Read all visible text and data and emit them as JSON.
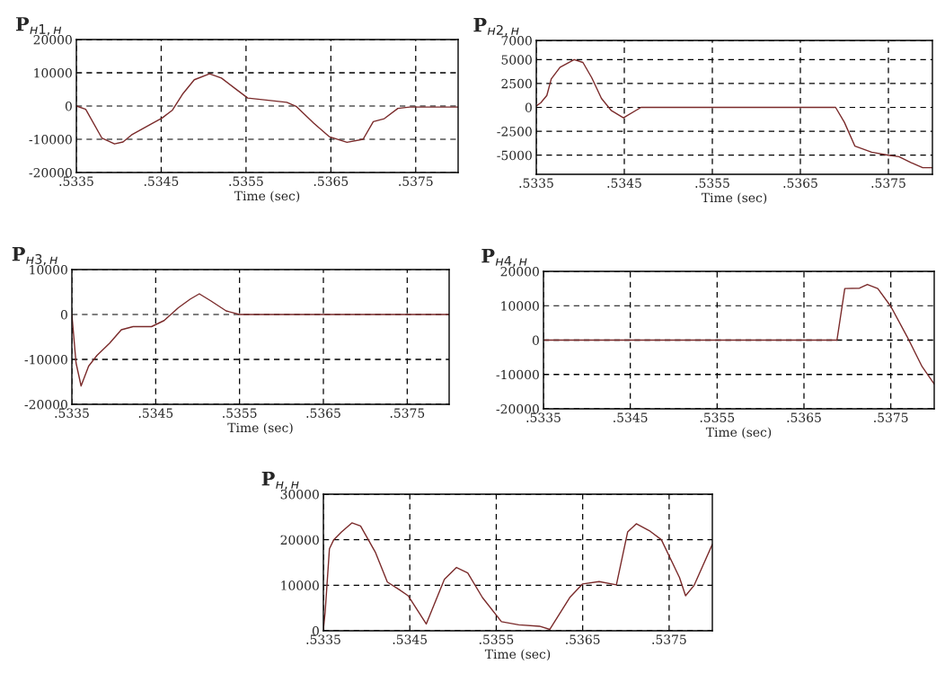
{
  "chart_data": [
    {
      "type": "line",
      "title": "P$_{н1,н}$",
      "xlabel": "Time (sec)",
      "xlim": [
        0.5335,
        0.538
      ],
      "ylim": [
        -20000,
        20000
      ],
      "grid": true,
      "xticks": [
        {
          "value": 0.5335,
          "label": ".5335"
        },
        {
          "value": 0.5345,
          "label": ".5345"
        },
        {
          "value": 0.5355,
          "label": ".5355"
        },
        {
          "value": 0.5365,
          "label": ".5365"
        },
        {
          "value": 0.5375,
          "label": ".5375"
        }
      ],
      "yticks": [
        -20000,
        -10000,
        0,
        10000,
        20000
      ],
      "series": [
        {
          "color": "#7a2a2a",
          "x": [
            0.5335,
            0.53361,
            0.5338,
            0.53395,
            0.53405,
            0.53415,
            0.53437,
            0.53451,
            0.53463,
            0.53475,
            0.53489,
            0.53507,
            0.53521,
            0.53538,
            0.53552,
            0.53574,
            0.53598,
            0.53609,
            0.5363,
            0.53648,
            0.53669,
            0.53688,
            0.537,
            0.53713,
            0.53729,
            0.53743,
            0.538
          ],
          "values": [
            0,
            -1000,
            -9600,
            -11400,
            -10800,
            -8700,
            -5600,
            -3600,
            -1300,
            3500,
            7900,
            9700,
            8400,
            5100,
            2400,
            1800,
            1100,
            -100,
            -5200,
            -9200,
            -10900,
            -10000,
            -4700,
            -3800,
            -700,
            -300,
            -300
          ]
        }
      ]
    },
    {
      "type": "line",
      "title": "P$_{н2,н}$",
      "xlabel": "Time (sec)",
      "xlim": [
        0.5335,
        0.538
      ],
      "ylim": [
        -7000,
        7000
      ],
      "grid": true,
      "xticks": [
        {
          "value": 0.5335,
          "label": ".5335"
        },
        {
          "value": 0.5345,
          "label": ".5345"
        },
        {
          "value": 0.5355,
          "label": ".5355"
        },
        {
          "value": 0.5365,
          "label": ".5365"
        },
        {
          "value": 0.5375,
          "label": ".5375"
        }
      ],
      "yticks": [
        -5000,
        -2500,
        0,
        2500,
        5000,
        7000
      ],
      "series": [
        {
          "color": "#7a2a2a",
          "x": [
            0.5335,
            0.53355,
            0.53362,
            0.53367,
            0.53377,
            0.53393,
            0.53403,
            0.53413,
            0.53424,
            0.53435,
            0.53449,
            0.53469,
            0.5369,
            0.537,
            0.53712,
            0.53731,
            0.5375,
            0.53762,
            0.53776,
            0.53789,
            0.538
          ],
          "values": [
            150,
            470,
            1250,
            2970,
            4200,
            5000,
            4700,
            3100,
            940,
            -310,
            -1090,
            0,
            0,
            -1560,
            -4060,
            -4690,
            -5000,
            -5160,
            -5780,
            -6310,
            -6310
          ]
        }
      ]
    },
    {
      "type": "line",
      "title": "P$_{н3,н}$",
      "xlabel": "Time (sec)",
      "xlim": [
        0.5335,
        0.538
      ],
      "ylim": [
        -20000,
        10000
      ],
      "grid": true,
      "xticks": [
        {
          "value": 0.5335,
          "label": ".5335"
        },
        {
          "value": 0.5345,
          "label": ".5345"
        },
        {
          "value": 0.5355,
          "label": ".5355"
        },
        {
          "value": 0.5365,
          "label": ".5365"
        },
        {
          "value": 0.5375,
          "label": ".5375"
        }
      ],
      "yticks": [
        -20000,
        -10000,
        0,
        10000
      ],
      "series": [
        {
          "color": "#7a2a2a",
          "x": [
            0.5335,
            0.53355,
            0.53361,
            0.5337,
            0.5338,
            0.53395,
            0.53409,
            0.53423,
            0.53445,
            0.5346,
            0.53477,
            0.53491,
            0.53502,
            0.53516,
            0.53534,
            0.5355,
            0.538
          ],
          "values": [
            0,
            -10800,
            -15900,
            -11500,
            -9100,
            -6400,
            -3400,
            -2700,
            -2700,
            -1350,
            1500,
            3400,
            4600,
            3000,
            800,
            0,
            0
          ]
        }
      ]
    },
    {
      "type": "line",
      "title": "P$_{н4,н}$",
      "xlabel": "Time (sec)",
      "xlim": [
        0.5335,
        0.538
      ],
      "ylim": [
        -20000,
        20000
      ],
      "grid": true,
      "xticks": [
        {
          "value": 0.5335,
          "label": ".5335"
        },
        {
          "value": 0.5345,
          "label": ".5345"
        },
        {
          "value": 0.5355,
          "label": ".5355"
        },
        {
          "value": 0.5365,
          "label": ".5365"
        },
        {
          "value": 0.5375,
          "label": ".5375"
        }
      ],
      "yticks": [
        -20000,
        -10000,
        0,
        10000,
        20000
      ],
      "series": [
        {
          "color": "#7a2a2a",
          "x": [
            0.5335,
            0.53688,
            0.53697,
            0.53714,
            0.53723,
            0.53735,
            0.5375,
            0.53769,
            0.53786,
            0.538
          ],
          "values": [
            0,
            0,
            15000,
            15100,
            16200,
            15000,
            9800,
            900,
            -7700,
            -12800
          ]
        }
      ]
    },
    {
      "type": "line",
      "title": "P$_{н,н}$",
      "xlabel": "Time (sec)",
      "xlim": [
        0.5335,
        0.538
      ],
      "ylim": [
        0,
        30000
      ],
      "grid": true,
      "xticks": [
        {
          "value": 0.5335,
          "label": ".5335"
        },
        {
          "value": 0.5345,
          "label": ".5345"
        },
        {
          "value": 0.5355,
          "label": ".5355"
        },
        {
          "value": 0.5365,
          "label": ".5365"
        },
        {
          "value": 0.5375,
          "label": ".5375"
        }
      ],
      "yticks": [
        0,
        10000,
        20000,
        30000
      ],
      "series": [
        {
          "color": "#7a2a2a",
          "x": [
            0.5335,
            0.53352,
            0.53357,
            0.53362,
            0.53371,
            0.53383,
            0.53393,
            0.5341,
            0.53424,
            0.53438,
            0.53448,
            0.53469,
            0.5349,
            0.53504,
            0.53517,
            0.53534,
            0.53556,
            0.53576,
            0.536,
            0.53612,
            0.53635,
            0.5365,
            0.53669,
            0.53689,
            0.53702,
            0.53712,
            0.53727,
            0.53741,
            0.53762,
            0.53769,
            0.53779,
            0.538
          ],
          "values": [
            300,
            4000,
            18000,
            20000,
            21700,
            23700,
            23000,
            17300,
            10700,
            9000,
            7700,
            1500,
            11300,
            13900,
            12700,
            7300,
            2000,
            1300,
            1000,
            300,
            7300,
            10300,
            10800,
            10100,
            21700,
            23500,
            22000,
            20000,
            11700,
            7700,
            10000,
            19000
          ]
        }
      ]
    }
  ]
}
